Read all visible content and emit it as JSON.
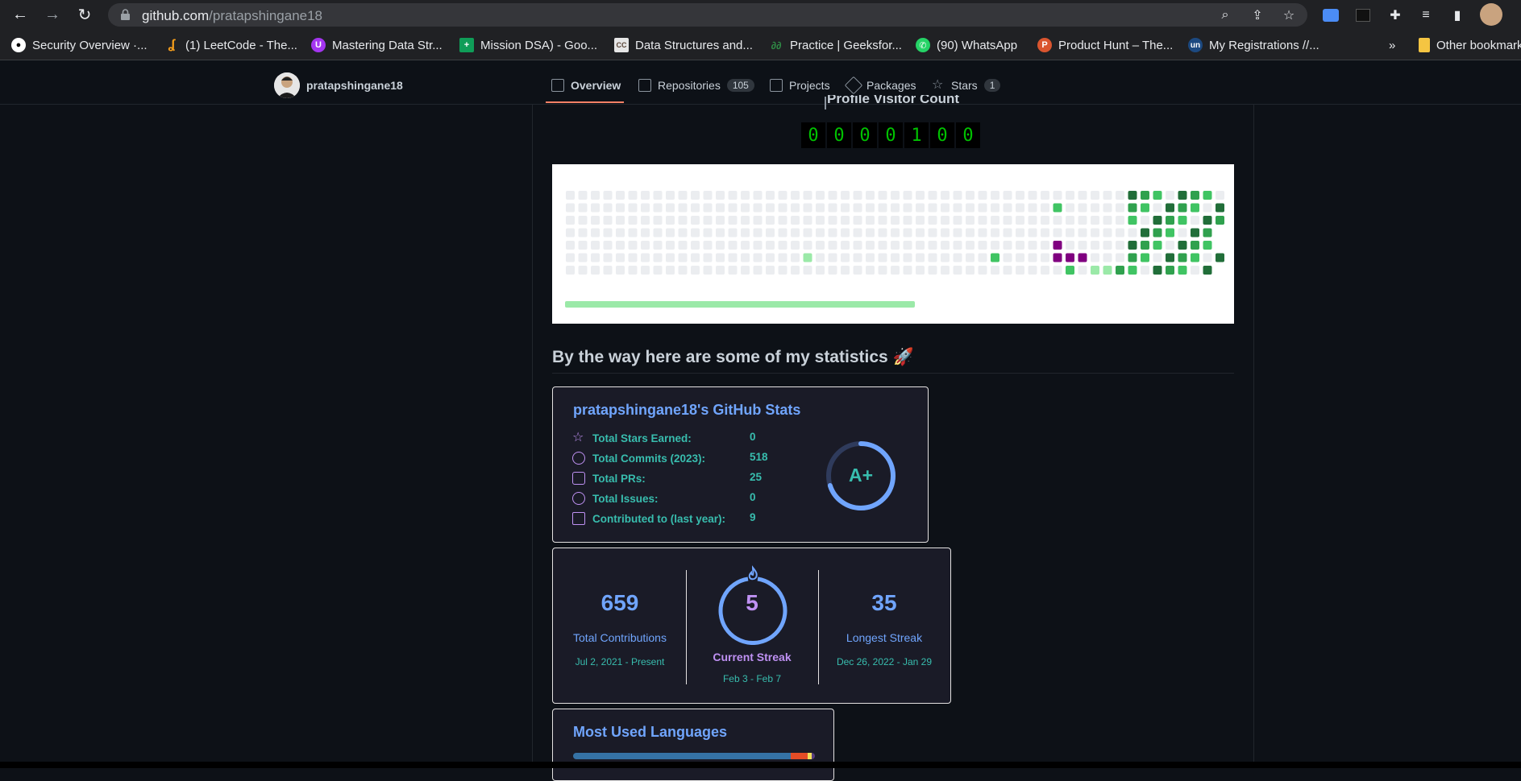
{
  "browser": {
    "url_host": "github.com",
    "url_path": "/pratapshingane18",
    "bookmarks": [
      {
        "label": "Security Overview ·...",
        "fav_color": "#ffffff",
        "fav_text": ""
      },
      {
        "label": "(1) LeetCode - The...",
        "fav_color": "#f89f1b",
        "fav_text": ""
      },
      {
        "label": "Mastering Data Str...",
        "fav_color": "#a435f0",
        "fav_text": "U"
      },
      {
        "label": "Mission DSA) - Goo...",
        "fav_color": "#0f9d58",
        "fav_text": "+"
      },
      {
        "label": "Data Structures and...",
        "fav_color": "#e6e6e6",
        "fav_text": "CC"
      },
      {
        "label": "Practice | Geeksfor...",
        "fav_color": "#2f8d46",
        "fav_text": "G"
      },
      {
        "label": "(90) WhatsApp",
        "fav_color": "#25d366",
        "fav_text": "✆"
      },
      {
        "label": "Product Hunt – The...",
        "fav_color": "#da552f",
        "fav_text": "P"
      },
      {
        "label": "My Registrations //...",
        "fav_color": "#1c4980",
        "fav_text": "un"
      }
    ],
    "overflow_label": "»",
    "other_bookmarks": "Other bookmarks"
  },
  "profile_nav": {
    "username": "pratapshingane18",
    "tabs": [
      {
        "label": "Overview",
        "count": ""
      },
      {
        "label": "Repositories",
        "count": "105"
      },
      {
        "label": "Projects",
        "count": ""
      },
      {
        "label": "Packages",
        "count": ""
      },
      {
        "label": "Stars",
        "count": "1"
      }
    ]
  },
  "visitor": {
    "title": "Profile Visitor Count",
    "digits": [
      "0",
      "0",
      "0",
      "0",
      "1",
      "0",
      "0"
    ]
  },
  "statistics_heading": "By the way here are some of my statistics 🚀",
  "github_stats": {
    "title": "pratapshingane18's GitHub Stats",
    "rows": [
      {
        "label": "Total Stars Earned:",
        "value": "0"
      },
      {
        "label": "Total Commits (2023):",
        "value": "518"
      },
      {
        "label": "Total PRs:",
        "value": "25"
      },
      {
        "label": "Total Issues:",
        "value": "0"
      },
      {
        "label": "Contributed to (last year):",
        "value": "9"
      }
    ],
    "rank": "A+",
    "rank_progress": 0.7
  },
  "streak": {
    "total": {
      "value": "659",
      "label": "Total Contributions",
      "range": "Jul 2, 2021 - Present"
    },
    "current": {
      "value": "5",
      "label": "Current Streak",
      "range": "Feb 3 - Feb 7"
    },
    "longest": {
      "value": "35",
      "label": "Longest Streak",
      "range": "Dec 26, 2022 - Jan 29"
    }
  },
  "languages": {
    "title": "Most Used Languages",
    "bar_colors": [
      "#3572A5",
      "#e34c26",
      "#f1e05a",
      "#563d7c"
    ],
    "bar_shares": [
      0.9,
      0.07,
      0.015,
      0.015
    ]
  },
  "colors": {
    "accent_blue": "#70a5fd",
    "accent_teal": "#38bdae",
    "accent_purple": "#bf91f3",
    "card_bg": "#1a1b27"
  }
}
